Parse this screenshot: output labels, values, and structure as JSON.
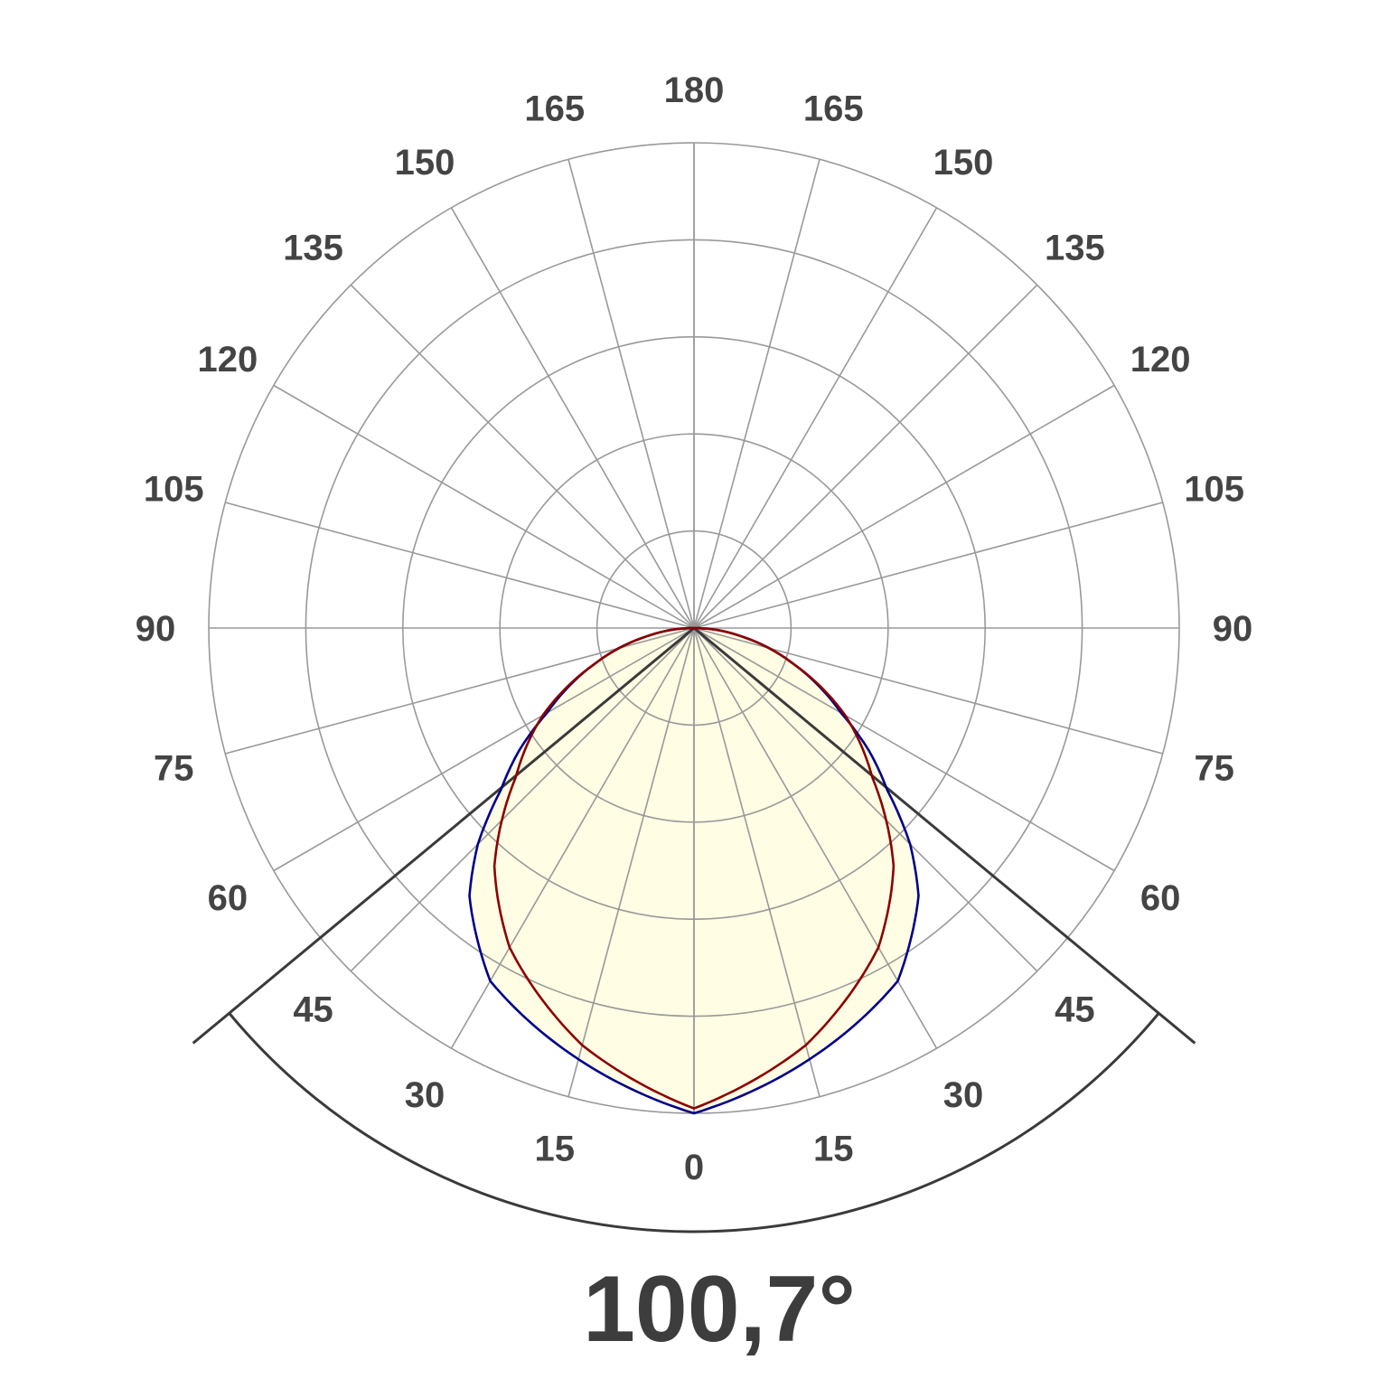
{
  "chart_data": {
    "type": "polar",
    "title": "100,7°",
    "beam_angle_deg": 100.7,
    "angle_ticks": [
      0,
      15,
      30,
      45,
      60,
      75,
      90,
      105,
      120,
      135,
      150,
      165,
      180
    ],
    "ring_count": 5,
    "radial_unit": "percent of maximum",
    "rlim": [
      0,
      100
    ],
    "grid": true,
    "symmetric": true,
    "series": [
      {
        "color": "#00008b",
        "angles": [
          0,
          15,
          30,
          40,
          45,
          50,
          55,
          60,
          70,
          80,
          90
        ],
        "values": [
          100,
          92,
          84,
          72,
          63,
          52,
          44,
          35,
          22,
          10,
          0
        ]
      },
      {
        "color": "#8b0000",
        "angles": [
          0,
          15,
          30,
          40,
          45,
          50,
          55,
          60,
          70,
          80,
          90
        ],
        "values": [
          99,
          89,
          76,
          64,
          56,
          48,
          42,
          36,
          22,
          10,
          0
        ]
      }
    ],
    "colors": {
      "fill": "#fffde4",
      "grid": "#999999",
      "beam_lines": "#3a3a3a",
      "labels": "#444444"
    }
  }
}
